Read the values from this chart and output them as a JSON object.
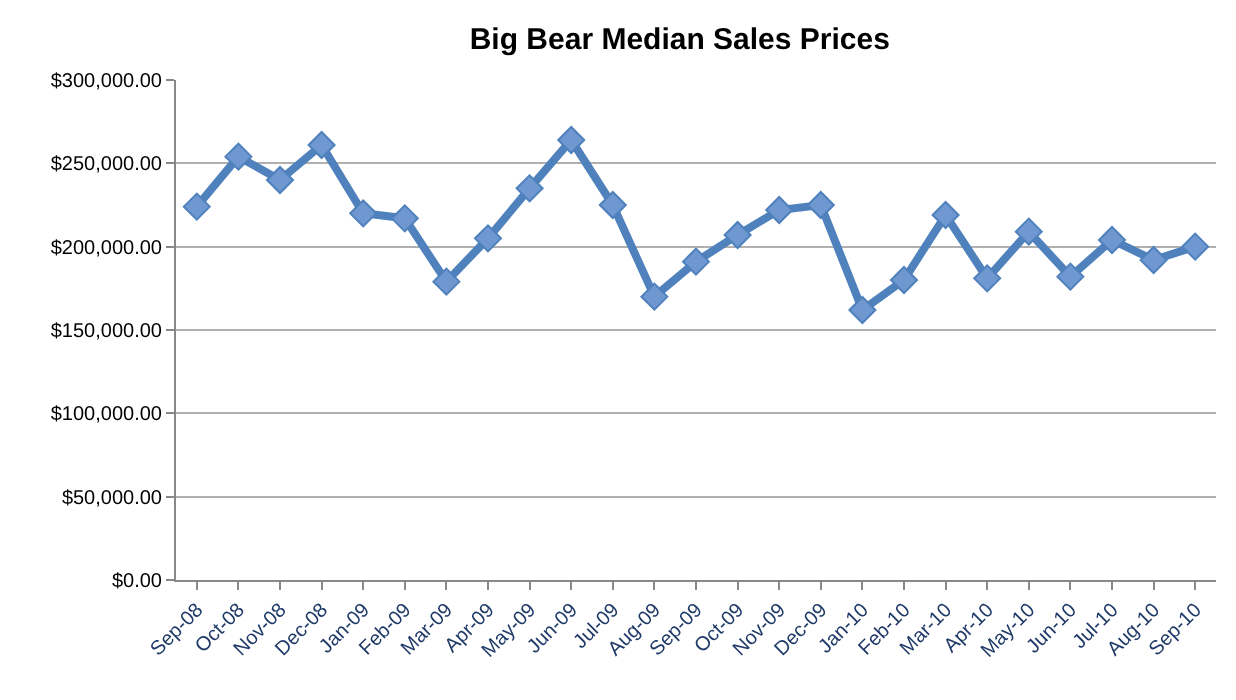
{
  "chart_data": {
    "type": "line",
    "title": "Big Bear Median Sales Prices",
    "categories": [
      "Sep-08",
      "Oct-08",
      "Nov-08",
      "Dec-08",
      "Jan-09",
      "Feb-09",
      "Mar-09",
      "Apr-09",
      "May-09",
      "Jun-09",
      "Jul-09",
      "Aug-09",
      "Sep-09",
      "Oct-09",
      "Nov-09",
      "Dec-09",
      "Jan-10",
      "Feb-10",
      "Mar-10",
      "Apr-10",
      "May-10",
      "Jun-10",
      "Jul-10",
      "Aug-10",
      "Sep-10"
    ],
    "series": [
      {
        "color": "#4f81bd",
        "values": [
          224000,
          254000,
          240000,
          261000,
          220000,
          217000,
          179000,
          205000,
          235000,
          264000,
          225000,
          170000,
          191000,
          207000,
          222000,
          225000,
          162000,
          180000,
          219000,
          181000,
          209000,
          182000,
          204000,
          192000,
          200000
        ]
      }
    ],
    "ylim": [
      0,
      300000
    ],
    "yticks": [
      {
        "value": 0,
        "label": "$0.00"
      },
      {
        "value": 50000,
        "label": "$50,000.00"
      },
      {
        "value": 100000,
        "label": "$100,000.00"
      },
      {
        "value": 150000,
        "label": "$150,000.00"
      },
      {
        "value": 200000,
        "label": "$200,000.00"
      },
      {
        "value": 250000,
        "label": "$250,000.00"
      },
      {
        "value": 300000,
        "label": "$300,000.00"
      }
    ],
    "grid": "y",
    "legend": false,
    "marker": "diamond",
    "line_style": "solid"
  }
}
